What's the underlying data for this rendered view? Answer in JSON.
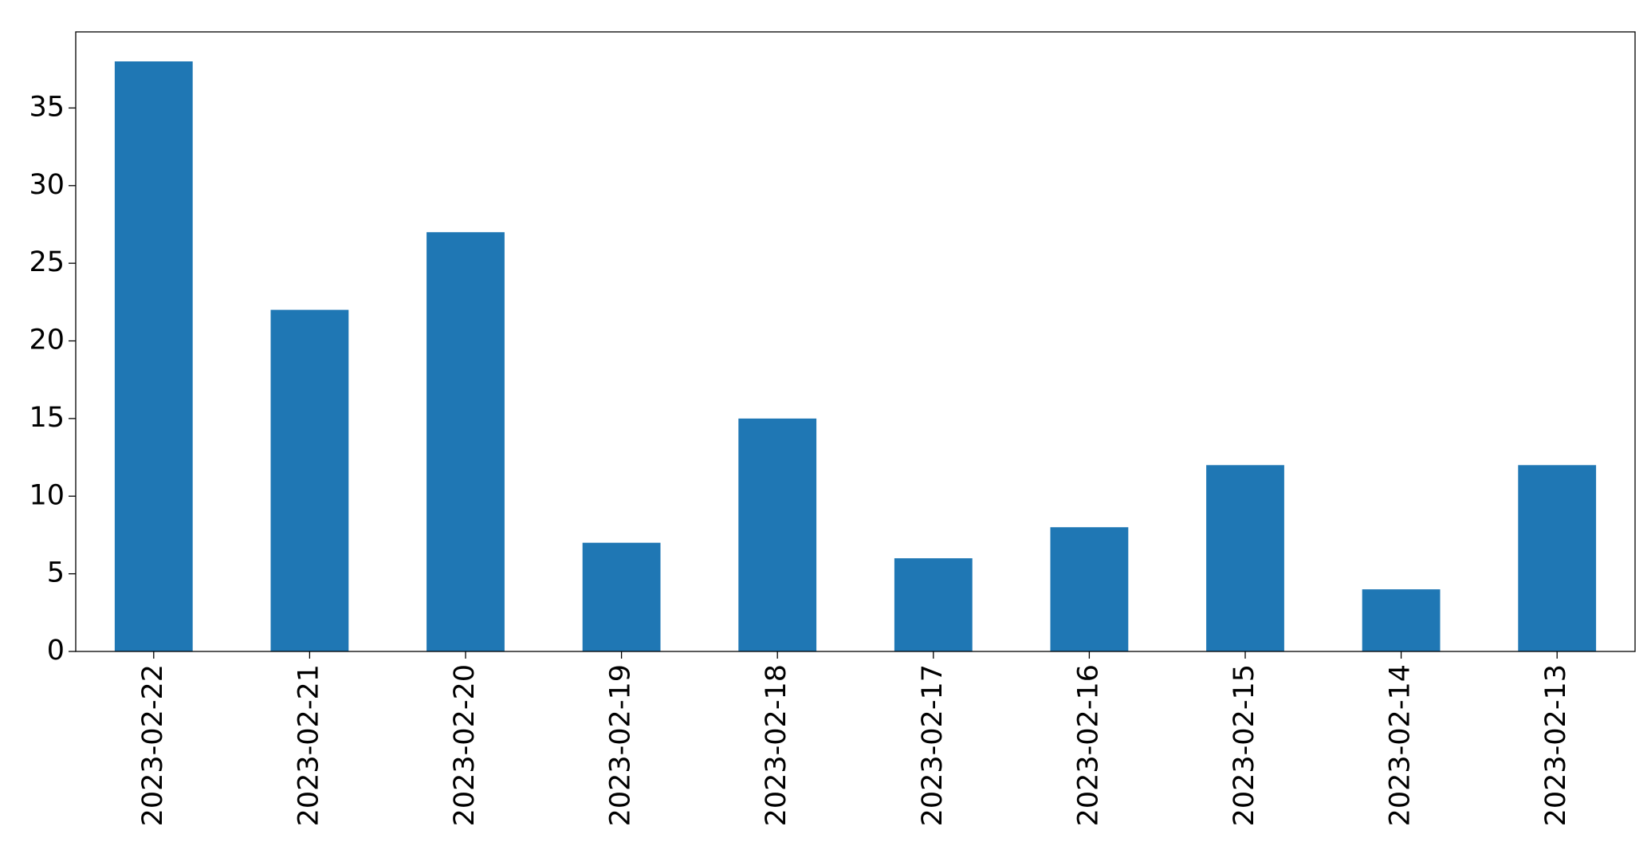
{
  "chart_data": {
    "type": "bar",
    "categories": [
      "2023-02-22",
      "2023-02-21",
      "2023-02-20",
      "2023-02-19",
      "2023-02-18",
      "2023-02-17",
      "2023-02-16",
      "2023-02-15",
      "2023-02-14",
      "2023-02-13"
    ],
    "values": [
      38,
      22,
      27,
      7,
      15,
      6,
      8,
      12,
      4,
      12
    ],
    "color": "#1f77b4",
    "ylim": [
      0,
      39.9
    ],
    "yticks": [
      0,
      5,
      10,
      15,
      20,
      25,
      30,
      35
    ],
    "grid": false
  }
}
